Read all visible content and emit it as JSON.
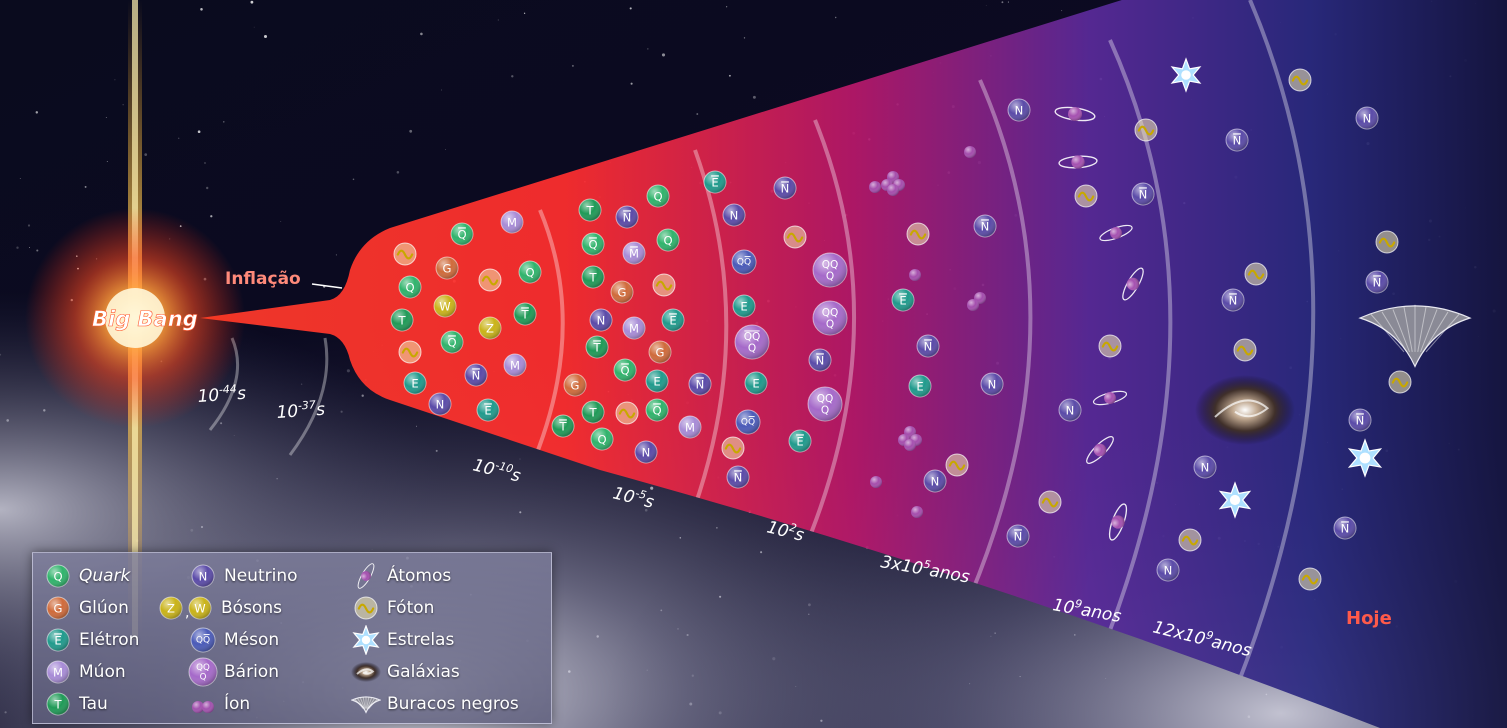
{
  "labels": {
    "big_bang": "Big Bang",
    "inflation": "Inflação",
    "today": "Hoje"
  },
  "time_marks": [
    {
      "base": "10",
      "exp": "-44",
      "unit": "s"
    },
    {
      "base": "10",
      "exp": "-37",
      "unit": "s"
    },
    {
      "base": "10",
      "exp": "-10",
      "unit": "s"
    },
    {
      "base": "10",
      "exp": "-5",
      "unit": "s"
    },
    {
      "base": "10",
      "exp": "2",
      "unit": "s"
    },
    {
      "base": "3x10",
      "exp": "5",
      "unit": "anos"
    },
    {
      "base": "10",
      "exp": "9",
      "unit": "anos"
    },
    {
      "base": "12x10",
      "exp": "9",
      "unit": "anos"
    }
  ],
  "glyphs": {
    "quark": "Q",
    "gluon": "G",
    "electron": "E",
    "muon": "M",
    "tau": "T",
    "neutrino": "N",
    "boson_z": "Z",
    "boson_w": "W",
    "meson": "QQ",
    "baryon_top": "QQ",
    "baryon_bottom": "Q"
  },
  "legend": [
    {
      "key": "quark",
      "label": "Quark",
      "italic": true
    },
    {
      "key": "gluon",
      "label": "Glúon"
    },
    {
      "key": "electron",
      "label": "Elétron"
    },
    {
      "key": "muon",
      "label": "Múon"
    },
    {
      "key": "tau",
      "label": "Tau"
    },
    {
      "key": "neutrino",
      "label": "Neutrino"
    },
    {
      "key": "boson",
      "label": "Bósons"
    },
    {
      "key": "meson",
      "label": "Méson"
    },
    {
      "key": "baryon",
      "label": "Bárion"
    },
    {
      "key": "ion",
      "label": "Íon"
    },
    {
      "key": "atom",
      "label": "Átomos"
    },
    {
      "key": "photon",
      "label": "Fóton"
    },
    {
      "key": "star",
      "label": "Estrelas"
    },
    {
      "key": "galaxy",
      "label": "Galáxias"
    },
    {
      "key": "blackhole",
      "label": "Buracos negros"
    }
  ],
  "colors": {
    "quark": "#2fb36b",
    "gluon": "#cf6a3a",
    "electron": "#1f9a8c",
    "muon": "#a78bd6",
    "tau": "#1f9a57",
    "neutrino": "#5a4aa8",
    "boson_z": "#c9b318",
    "boson_w": "#c9b318",
    "meson": "#4a5ab8",
    "baryon": "#a569c9",
    "ion": "#a550b0",
    "photon": "#f0e070",
    "star": "#9fd8ff",
    "label_red": "#ff5a4a",
    "label_white": "#ffffff"
  }
}
